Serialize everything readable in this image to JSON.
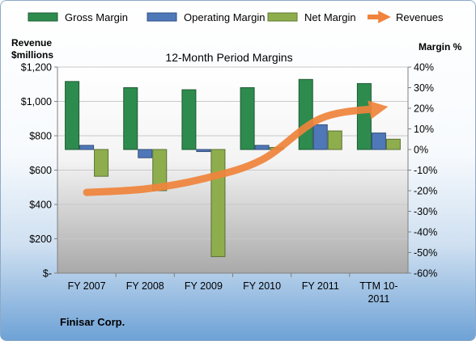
{
  "chart_data": {
    "type": "bar",
    "title": "12-Month Period Margins",
    "y_left_label_line1": "Revenue",
    "y_left_label_line2": "$millions",
    "y_right_label": "Margin %",
    "company": "Finisar Corp.",
    "categories": [
      [
        "FY 2007"
      ],
      [
        "FY 2008"
      ],
      [
        "FY 2009"
      ],
      [
        "FY 2010"
      ],
      [
        "FY 2011"
      ],
      [
        "TTM 10-",
        "2011"
      ]
    ],
    "left_axis": {
      "min": 0,
      "max": 1200,
      "ticks": [
        "$-",
        "$200",
        "$400",
        "$600",
        "$800",
        "$1,000",
        "$1,200"
      ]
    },
    "right_axis": {
      "min": -60,
      "max": 40,
      "ticks": [
        "-60%",
        "-50%",
        "-40%",
        "-30%",
        "-20%",
        "-10%",
        "0%",
        "10%",
        "20%",
        "30%",
        "40%"
      ]
    },
    "legend_position": "top",
    "series": [
      {
        "name": "Gross Margin",
        "kind": "bar",
        "axis": "right",
        "color": "#2e8b4e",
        "values": [
          33,
          30,
          29,
          30,
          34,
          32
        ]
      },
      {
        "name": "Operating Margin",
        "kind": "bar",
        "axis": "right",
        "color": "#4f78b9",
        "values": [
          2,
          -4,
          -1,
          2,
          12,
          8
        ]
      },
      {
        "name": "Net Margin",
        "kind": "bar",
        "axis": "right",
        "color": "#8eae4e",
        "values": [
          -13,
          -20,
          -52,
          1,
          9,
          5
        ]
      },
      {
        "name": "Revenues",
        "kind": "line",
        "axis": "left",
        "color": "#f0843c",
        "values": [
          470,
          490,
          550,
          660,
          900,
          960
        ]
      }
    ]
  }
}
